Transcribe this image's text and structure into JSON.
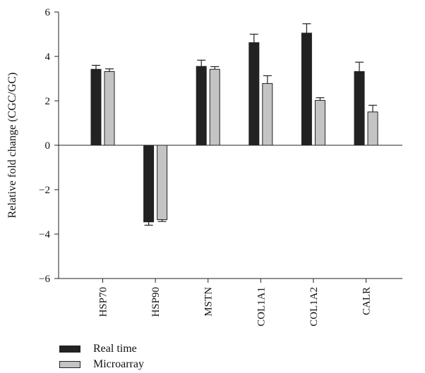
{
  "chart_data": {
    "type": "bar",
    "title": "",
    "xlabel": "",
    "ylabel": "Relative fold change (CGC/GC)",
    "categories": [
      "HSP70",
      "HSP90",
      "MSTN",
      "COL1A1",
      "COL1A2",
      "CALR"
    ],
    "ylim": [
      -6,
      6
    ],
    "yticks": [
      6,
      4,
      2,
      0,
      -2,
      -4,
      -6
    ],
    "ytick_labels": [
      "6",
      "4",
      "2",
      "0",
      "−2",
      "−4",
      "−6"
    ],
    "grid": false,
    "legend_position": "bottom-left",
    "series": [
      {
        "name": "Real time",
        "color": "#222222",
        "values": [
          3.42,
          -3.45,
          3.55,
          4.62,
          5.05,
          3.32
        ],
        "errors": [
          0.18,
          0.15,
          0.28,
          0.38,
          0.42,
          0.42
        ]
      },
      {
        "name": "Microarray",
        "color": "#c4c4c4",
        "values": [
          3.32,
          -3.35,
          3.42,
          2.78,
          2.02,
          1.5
        ],
        "errors": [
          0.12,
          0.08,
          0.12,
          0.35,
          0.12,
          0.3
        ]
      }
    ]
  }
}
